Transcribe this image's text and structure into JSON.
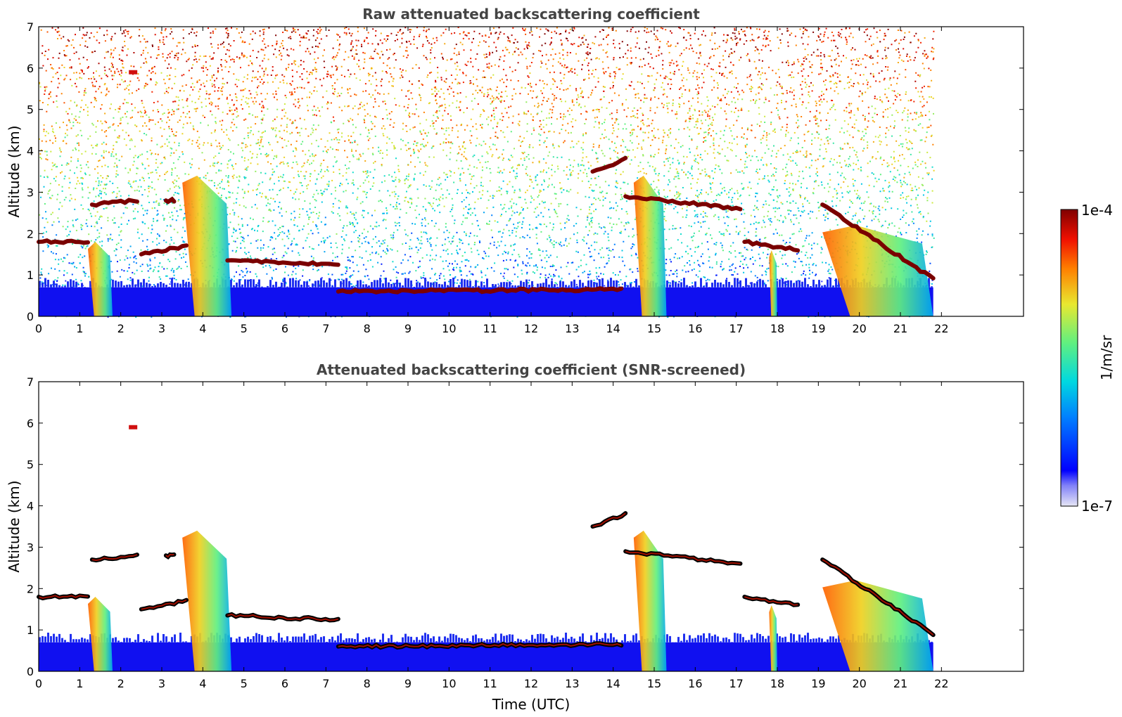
{
  "chart_data": [
    {
      "type": "heatmap",
      "title": "Raw attenuated backscattering coefficient",
      "ylabel": "Altitude (km)",
      "xlabel": "",
      "xlim": [
        0,
        24
      ],
      "ylim": [
        0,
        7
      ],
      "xticks": [
        0,
        1,
        2,
        3,
        4,
        5,
        6,
        7,
        8,
        9,
        10,
        11,
        12,
        13,
        14,
        15,
        16,
        17,
        18,
        19,
        20,
        21,
        22
      ],
      "yticks": [
        0,
        1,
        2,
        3,
        4,
        5,
        6,
        7
      ],
      "data_end_time": 21.8,
      "features": [
        {
          "kind": "background-noise",
          "description_value": "signal noise increasing with altitude"
        },
        {
          "kind": "aerosol-layer",
          "x": [
            0,
            21.8
          ],
          "top": 0.7
        },
        {
          "kind": "cloud-layer",
          "x": [
            0,
            1.2
          ],
          "alt": [
            1.8,
            1.8
          ]
        },
        {
          "kind": "cloud-layer",
          "x": [
            1.3,
            2.4
          ],
          "alt": [
            2.7,
            2.8
          ]
        },
        {
          "kind": "cloud-layer",
          "x": [
            3.1,
            3.3
          ],
          "alt": [
            2.8,
            2.8
          ]
        },
        {
          "kind": "cloud-layer",
          "x": [
            2.5,
            3.6
          ],
          "alt": [
            1.5,
            1.7
          ]
        },
        {
          "kind": "cloud-layer",
          "x": [
            4.6,
            7.3
          ],
          "alt": [
            1.35,
            1.25
          ]
        },
        {
          "kind": "cloud-layer",
          "x": [
            7.3,
            14.2
          ],
          "alt": [
            0.6,
            0.65
          ]
        },
        {
          "kind": "cloud-layer",
          "x": [
            13.5,
            14.3
          ],
          "alt": [
            3.5,
            3.8
          ]
        },
        {
          "kind": "cloud-layer",
          "x": [
            14.3,
            17.1
          ],
          "alt": [
            2.9,
            2.6
          ]
        },
        {
          "kind": "cloud-layer",
          "x": [
            17.2,
            18.5
          ],
          "alt": [
            1.8,
            1.6
          ]
        },
        {
          "kind": "cloud-layer",
          "x": [
            19.1,
            21.8
          ],
          "alt": [
            2.7,
            0.9
          ]
        },
        {
          "kind": "precipitation-streak",
          "x": [
            1.2,
            1.8
          ],
          "alt": [
            0,
            1.8
          ]
        },
        {
          "kind": "precipitation-streak",
          "x": [
            3.5,
            4.7
          ],
          "alt": [
            0,
            3.4
          ]
        },
        {
          "kind": "precipitation-streak",
          "x": [
            14.5,
            15.3
          ],
          "alt": [
            0,
            3.4
          ]
        },
        {
          "kind": "precipitation-streak",
          "x": [
            17.8,
            18.0
          ],
          "alt": [
            0,
            1.6
          ]
        },
        {
          "kind": "precipitation-streak",
          "x": [
            19.1,
            21.8
          ],
          "alt": [
            0,
            2.2
          ]
        },
        {
          "kind": "isolated-feature",
          "x": 2.3,
          "alt": 5.9
        }
      ]
    },
    {
      "type": "heatmap",
      "title": "Attenuated backscattering coefficient (SNR-screened)",
      "ylabel": "Altitude (km)",
      "xlabel": "Time (UTC)",
      "xlim": [
        0,
        24
      ],
      "ylim": [
        0,
        7
      ],
      "xticks": [
        0,
        1,
        2,
        3,
        4,
        5,
        6,
        7,
        8,
        9,
        10,
        11,
        12,
        13,
        14,
        15,
        16,
        17,
        18,
        19,
        20,
        21,
        22
      ],
      "yticks": [
        0,
        1,
        2,
        3,
        4,
        5,
        6,
        7
      ],
      "data_end_time": 21.8,
      "screened": true
    }
  ],
  "colorbar": {
    "label": "1/m/sr",
    "max_label": "1e-4",
    "min_label": "1e-7",
    "scale": "log",
    "colormap": [
      "#e6e6f5",
      "#0000ff",
      "#0080ff",
      "#00d8e0",
      "#60f080",
      "#e8e830",
      "#ff8000",
      "#f01000",
      "#800000"
    ]
  },
  "colors": {
    "layer_dark": "#7a0000",
    "screened_edge": "#000000",
    "aerosol": "#1010f0"
  }
}
